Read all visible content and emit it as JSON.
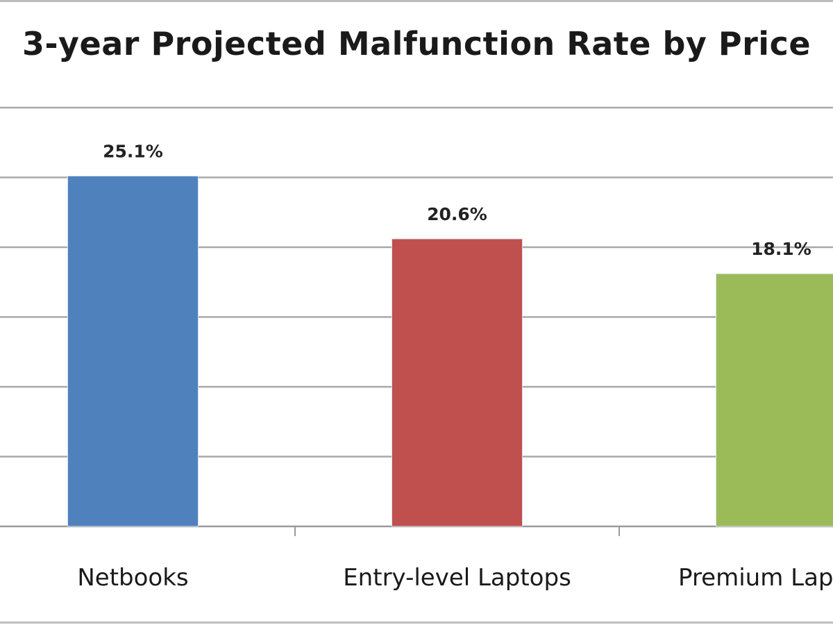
{
  "chart_data": {
    "type": "bar",
    "title": "3-year Projected Malfunction Rate by Price",
    "categories": [
      "Netbooks",
      "Entry-level Laptops",
      "Premium Laptops"
    ],
    "values": [
      25.1,
      20.6,
      18.1
    ],
    "data_labels": [
      "25.1%",
      "20.6%",
      "18.1%"
    ],
    "colors": [
      "#4f81bd",
      "#c0504d",
      "#9bbb59"
    ],
    "xlabel": "",
    "ylabel": "",
    "ylim": [
      0,
      30
    ],
    "grid": true,
    "legend": "none"
  }
}
